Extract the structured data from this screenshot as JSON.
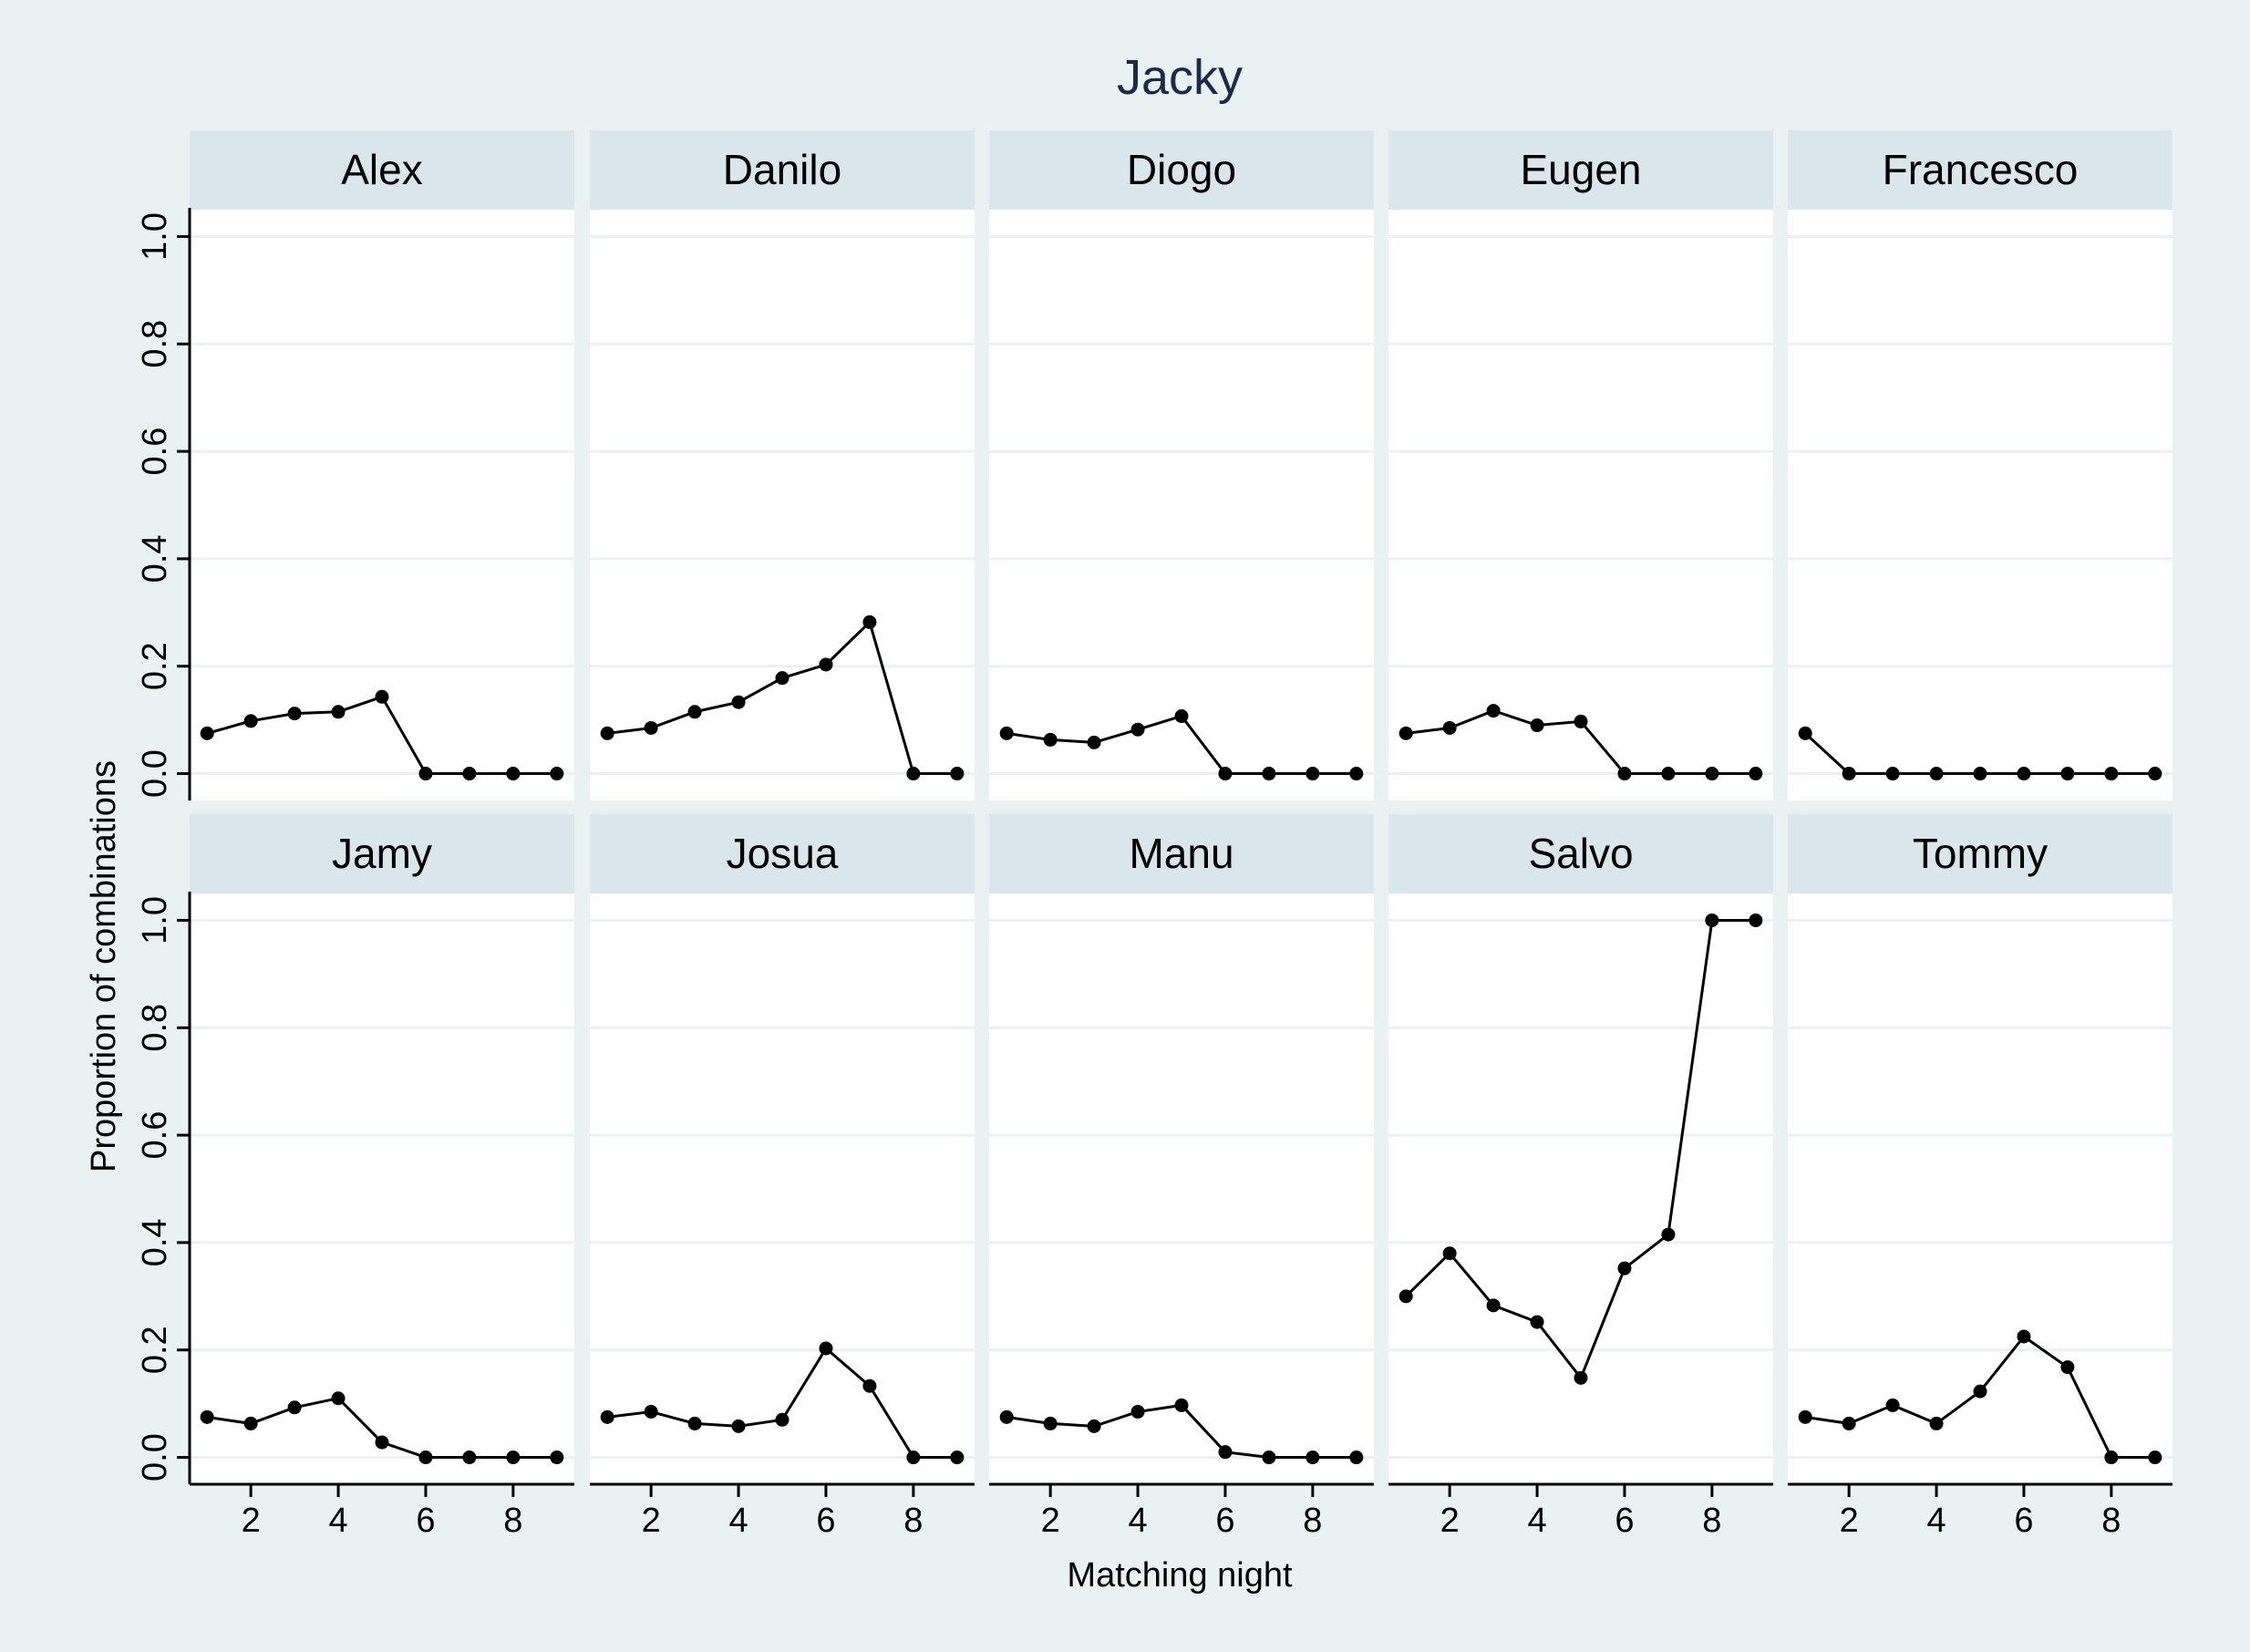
{
  "chart_data": {
    "type": "line",
    "title": "Jacky",
    "xlabel": "Matching night",
    "ylabel": "Proportion of combinations",
    "x": [
      1,
      2,
      3,
      4,
      5,
      6,
      7,
      8,
      9
    ],
    "xticks": [
      2,
      4,
      6,
      8
    ],
    "xlim": [
      0.6,
      9.4
    ],
    "yticks": [
      "0.0",
      "0.2",
      "0.4",
      "0.6",
      "0.8",
      "1.0"
    ],
    "ylim": [
      -0.05,
      1.05
    ],
    "grid": true,
    "colors": {
      "background": "#eaf1f3",
      "panel": "#ffffff",
      "strip": "#d9e6eb",
      "line": "#000000",
      "title": "#1a2a4a",
      "grid": "#eaf1f3"
    },
    "panels": [
      {
        "name": "Alex",
        "values": [
          0.075,
          0.098,
          0.112,
          0.115,
          0.143,
          0.0,
          0.0,
          0.0,
          0.0
        ]
      },
      {
        "name": "Danilo",
        "values": [
          0.075,
          0.085,
          0.115,
          0.133,
          0.178,
          0.203,
          0.282,
          0.0,
          0.0
        ]
      },
      {
        "name": "Diogo",
        "values": [
          0.075,
          0.063,
          0.058,
          0.082,
          0.107,
          0.0,
          0.0,
          0.0,
          0.0
        ]
      },
      {
        "name": "Eugen",
        "values": [
          0.075,
          0.085,
          0.117,
          0.09,
          0.097,
          0.0,
          0.0,
          0.0,
          0.0
        ]
      },
      {
        "name": "Francesco",
        "values": [
          0.075,
          0.0,
          0.0,
          0.0,
          0.0,
          0.0,
          0.0,
          0.0,
          0.0
        ]
      },
      {
        "name": "Jamy",
        "values": [
          0.075,
          0.063,
          0.093,
          0.11,
          0.028,
          0.0,
          0.0,
          0.0,
          0.0
        ]
      },
      {
        "name": "Josua",
        "values": [
          0.075,
          0.085,
          0.063,
          0.058,
          0.07,
          0.203,
          0.133,
          0.0,
          0.0
        ]
      },
      {
        "name": "Manu",
        "values": [
          0.075,
          0.063,
          0.058,
          0.085,
          0.097,
          0.01,
          0.0,
          0.0,
          0.0
        ]
      },
      {
        "name": "Salvo",
        "values": [
          0.3,
          0.38,
          0.283,
          0.252,
          0.148,
          0.352,
          0.415,
          1.0,
          1.0
        ]
      },
      {
        "name": "Tommy",
        "values": [
          0.075,
          0.063,
          0.097,
          0.063,
          0.123,
          0.225,
          0.168,
          0.0,
          0.0
        ]
      }
    ]
  }
}
